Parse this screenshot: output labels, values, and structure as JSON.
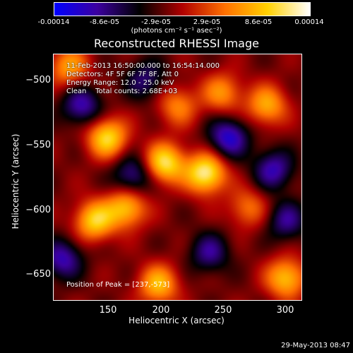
{
  "colorbar": {
    "ticks": [
      "-0.00014",
      "-8.6e-05",
      "-2.9e-05",
      "2.9e-05",
      "8.6e-05",
      "0.00014"
    ],
    "unit_label": "(photons cm⁻² s⁻¹ asec⁻²)",
    "range": [
      -0.00014,
      0.00014
    ],
    "colors": [
      "#0000ff",
      "#3c00a0",
      "#000000",
      "#b00000",
      "#ff7000",
      "#ffd000",
      "#ffffff"
    ]
  },
  "chart_data": {
    "type": "heatmap",
    "title": "Reconstructed RHESSI Image",
    "xlabel": "Heliocentric X (arcsec)",
    "ylabel": "Heliocentric Y (arcsec)",
    "xlim": [
      118,
      312
    ],
    "ylim": [
      -672,
      -480
    ],
    "x_ticks": [
      150,
      200,
      250,
      300
    ],
    "y_ticks": [
      -500,
      -550,
      -600,
      -650
    ],
    "x_tick_labels": [
      "150",
      "200",
      "250",
      "300"
    ],
    "y_tick_labels": [
      "−500",
      "−550",
      "−600",
      "−650"
    ],
    "sources": [
      {
        "x": 237,
        "y": -573,
        "v": 1.0
      },
      {
        "x": 205,
        "y": -565,
        "v": 0.9
      },
      {
        "x": 160,
        "y": -545,
        "v": 0.85
      },
      {
        "x": 150,
        "y": -610,
        "v": 0.8
      },
      {
        "x": 175,
        "y": -600,
        "v": 0.75
      },
      {
        "x": 200,
        "y": -660,
        "v": 0.7
      },
      {
        "x": 285,
        "y": -520,
        "v": 0.65
      },
      {
        "x": 300,
        "y": -655,
        "v": 0.75
      },
      {
        "x": 250,
        "y": -510,
        "v": 0.55
      },
      {
        "x": 270,
        "y": -600,
        "v": 0.45
      },
      {
        "x": 130,
        "y": -490,
        "v": 0.6
      },
      {
        "x": 215,
        "y": -520,
        "v": 0.5
      },
      {
        "x": 140,
        "y": -520,
        "v": -0.6
      },
      {
        "x": 180,
        "y": -575,
        "v": -0.55
      },
      {
        "x": 255,
        "y": -545,
        "v": -0.7
      },
      {
        "x": 290,
        "y": -570,
        "v": -0.6
      },
      {
        "x": 240,
        "y": -635,
        "v": -0.5
      },
      {
        "x": 125,
        "y": -640,
        "v": -0.6
      },
      {
        "x": 300,
        "y": -610,
        "v": -0.5
      },
      {
        "x": 190,
        "y": -500,
        "v": -0.45
      }
    ],
    "peak": [
      237,
      -573
    ]
  },
  "info": {
    "line1": "11-Feb-2013 16:50:00.000 to 16:54:14.000",
    "line2": "Detectors: 4F 5F 6F 7F 8F, Att 0",
    "line3": "Energy Range: 12.0 - 25.0 keV",
    "line4": "Clean    Total counts: 2.68E+03",
    "peak_text": "Position of Peak = [237,-573]"
  },
  "footer": {
    "date": "29-May-2013 08:47"
  }
}
